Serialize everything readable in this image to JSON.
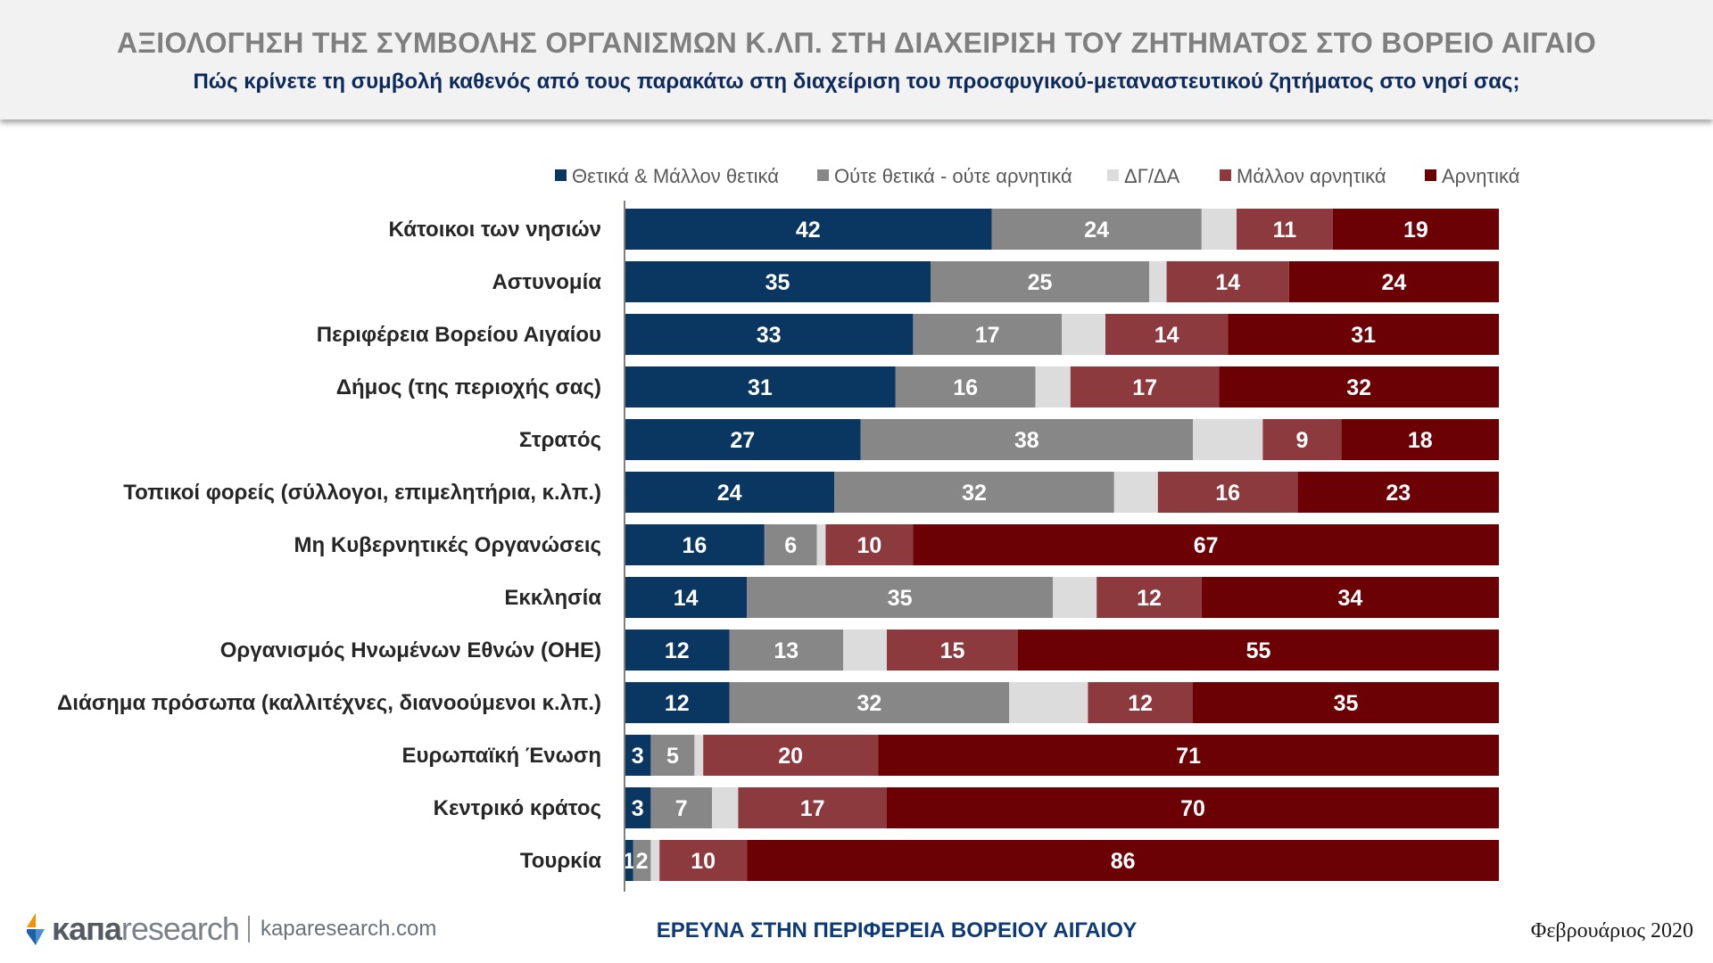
{
  "header": {
    "title": "ΑΞΙΟΛΟΓΗΣΗ ΤΗΣ ΣΥΜΒΟΛΗΣ ΟΡΓΑΝΙΣΜΩΝ Κ.ΛΠ. ΣΤΗ ΔΙΑΧΕΙΡΙΣΗ ΤΟΥ ΖΗΤΗΜΑΤΟΣ ΣΤΟ ΒΟΡΕΙΟ ΑΙΓΑΙΟ",
    "subtitle": "Πώς κρίνετε τη συμβολή καθενός από τους παρακάτω στη διαχείριση του προσφυγικού-μεταναστευτικού ζητήματος στο νησί σας;"
  },
  "chart_data": {
    "type": "bar",
    "orientation": "horizontal",
    "stacked": true,
    "legend_position": "top",
    "categories": [
      "Κάτοικοι των νησιών",
      "Αστυνομία",
      "Περιφέρεια Βορείου Αιγαίου",
      "Δήμος (της περιοχής σας)",
      "Στρατός",
      "Τοπικοί φορείς (σύλλογοι, επιμελητήρια, κ.λπ.)",
      "Μη Κυβερνητικές Οργανώσεις",
      "Εκκλησία",
      "Οργανισμός Ηνωμένων Εθνών (ΟΗΕ)",
      "Διάσημα πρόσωπα (καλλιτέχνες, διανοούμενοι κ.λπ.)",
      "Ευρωπαϊκή Ένωση",
      "Κεντρικό κράτος",
      "Τουρκία"
    ],
    "series": [
      {
        "name": "Θετικά & Μάλλον θετικά",
        "color": "#0a3761",
        "values": [
          42,
          35,
          33,
          31,
          27,
          24,
          16,
          14,
          12,
          12,
          3,
          3,
          1
        ],
        "labeled": true
      },
      {
        "name": "Ούτε θετικά - ούτε αρνητικά",
        "color": "#878787",
        "values": [
          24,
          25,
          17,
          16,
          38,
          32,
          6,
          35,
          13,
          32,
          5,
          7,
          2
        ],
        "labeled": true
      },
      {
        "name": "ΔΓ/ΔΑ",
        "color": "#dcdcdc",
        "values": [
          4,
          2,
          5,
          4,
          8,
          5,
          1,
          5,
          5,
          9,
          1,
          3,
          1
        ],
        "labeled": false
      },
      {
        "name": "Μάλλον αρνητικά",
        "color": "#8d3a3e",
        "values": [
          11,
          14,
          14,
          17,
          9,
          16,
          10,
          12,
          15,
          12,
          20,
          17,
          10
        ],
        "labeled": true
      },
      {
        "name": "Αρνητικά",
        "color": "#6b0005",
        "values": [
          19,
          24,
          31,
          32,
          18,
          23,
          67,
          34,
          55,
          35,
          71,
          70,
          86
        ],
        "labeled": true
      }
    ],
    "xlim": [
      0,
      100
    ]
  },
  "footer": {
    "brand_bold": "κапа",
    "brand_light": "research",
    "url": "kaparesearch.com",
    "center_text": "ΕΡΕΥΝΑ ΣΤΗΝ ΠΕΡΙΦΕΡΕΙΑ ΒΟΡΕΙΟΥ ΑΙΓΑΙΟΥ",
    "date": "Φεβρουάριος 2020"
  },
  "icons": {
    "logo": "kapa-logo-icon"
  }
}
